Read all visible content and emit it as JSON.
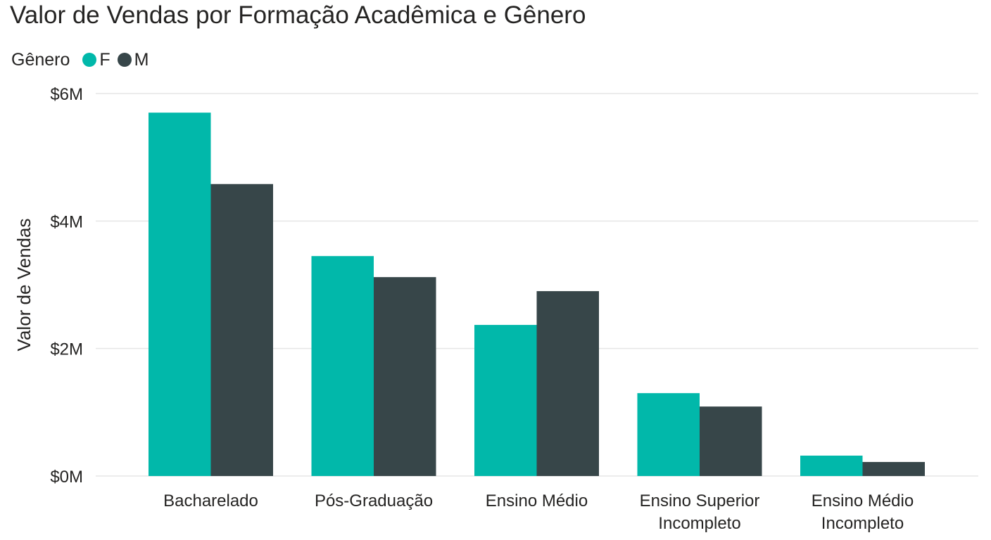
{
  "chart_data": {
    "type": "bar",
    "title": "Valor de Vendas por Formação Acadêmica e Gênero",
    "legend": {
      "title": "Gênero",
      "placement": "top-left"
    },
    "ylabel": "Valor de Vendas",
    "xlabel": "",
    "ylim": [
      0,
      6000000
    ],
    "yticks": [
      {
        "value": 0,
        "label": "$0M"
      },
      {
        "value": 2000000,
        "label": "$2M"
      },
      {
        "value": 4000000,
        "label": "$4M"
      },
      {
        "value": 6000000,
        "label": "$6M"
      }
    ],
    "grid": true,
    "categories": [
      [
        "Bacharelado"
      ],
      [
        "Pós-Graduação"
      ],
      [
        "Ensino Médio"
      ],
      [
        "Ensino Superior",
        "Incompleto"
      ],
      [
        "Ensino Médio",
        "Incompleto"
      ]
    ],
    "series": [
      {
        "name": "F",
        "color": "#01B8AA",
        "values": [
          5700000,
          3450000,
          2370000,
          1300000,
          320000
        ]
      },
      {
        "name": "M",
        "color": "#374649",
        "values": [
          4580000,
          3120000,
          2900000,
          1090000,
          220000
        ]
      }
    ]
  },
  "colors": {
    "gridline": "#e6e6e6",
    "text": "#252423"
  }
}
